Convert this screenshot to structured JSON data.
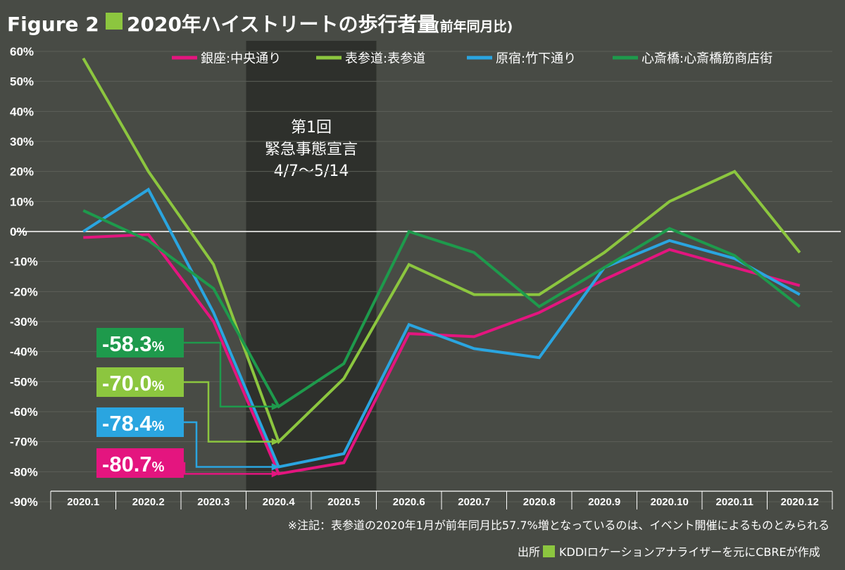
{
  "figure_label": "Figure 2",
  "title_main": "2020年ハイストリートの歩行者量",
  "title_sub": "(前年同月比)",
  "chart_data": {
    "type": "line",
    "title": "2020年ハイストリートの歩行者量(前年同月比)",
    "categories": [
      "2020.1",
      "2020.2",
      "2020.3",
      "2020.4",
      "2020.5",
      "2020.6",
      "2020.7",
      "2020.8",
      "2020.9",
      "2020.10",
      "2020.11",
      "2020.12"
    ],
    "ylim": [
      -90,
      60
    ],
    "yticks": [
      60,
      50,
      40,
      30,
      20,
      10,
      0,
      -10,
      -20,
      -30,
      -40,
      -50,
      -60,
      -70,
      -80,
      -90
    ],
    "ytick_labels": [
      "60%",
      "50%",
      "40%",
      "30%",
      "20%",
      "10%",
      "0%",
      "-10%",
      "-20%",
      "-30%",
      "-40%",
      "-50%",
      "-60%",
      "-70%",
      "-80%",
      "-90%"
    ],
    "series": [
      {
        "name": "銀座:中央通り",
        "color": "#e4157f",
        "values": [
          -2,
          -1,
          -30,
          -80.7,
          -77,
          -34,
          -35,
          -27,
          -16,
          -6,
          -12,
          -18
        ]
      },
      {
        "name": "表参道:表参道",
        "color": "#8cc63f",
        "values": [
          57.7,
          20,
          -11,
          -70.0,
          -49,
          -11,
          -21,
          -21,
          -7,
          10,
          20,
          -7
        ]
      },
      {
        "name": "原宿:竹下通り",
        "color": "#2aa5e0",
        "values": [
          0,
          14,
          -27,
          -78.4,
          -74,
          -31,
          -39,
          -42,
          -12,
          -3,
          -9,
          -21
        ]
      },
      {
        "name": "心斎橋:心斎橋筋商店街",
        "color": "#1e9a4c",
        "values": [
          7,
          -3,
          -19,
          -58.3,
          -44,
          0,
          -7,
          -25,
          -12,
          1,
          -8,
          -25
        ]
      }
    ],
    "shaded_period": {
      "from": "2020.4",
      "to": "2020.5",
      "label_line1": "第1回",
      "label_line2": "緊急事態宣言",
      "label_line3": "4/7〜5/14"
    },
    "callouts": [
      {
        "series": "心斎橋:心斎橋筋商店街",
        "value_label": "-58.3",
        "unit": "%",
        "color": "#1e9a4c",
        "y_value": -58.3
      },
      {
        "series": "表参道:表参道",
        "value_label": "-70.0",
        "unit": "%",
        "color": "#8cc63f",
        "y_value": -70.0
      },
      {
        "series": "原宿:竹下通り",
        "value_label": "-78.4",
        "unit": "%",
        "color": "#2aa5e0",
        "y_value": -78.4
      },
      {
        "series": "銀座:中央通り",
        "value_label": "-80.7",
        "unit": "%",
        "color": "#e4157f",
        "y_value": -80.7
      }
    ],
    "legend_position": "top-right"
  },
  "note": "※注記：表参道の2020年1月が前年同月比57.7%増となっているのは、イベント開催によるものとみられる",
  "source_label": "出所",
  "source_text": "KDDIロケーションアナライザーを元にCBREが作成",
  "colors": {
    "background": "#484b45",
    "shading": "#2e302c",
    "grid": "#6a6d66",
    "accent": "#8cc63f"
  }
}
